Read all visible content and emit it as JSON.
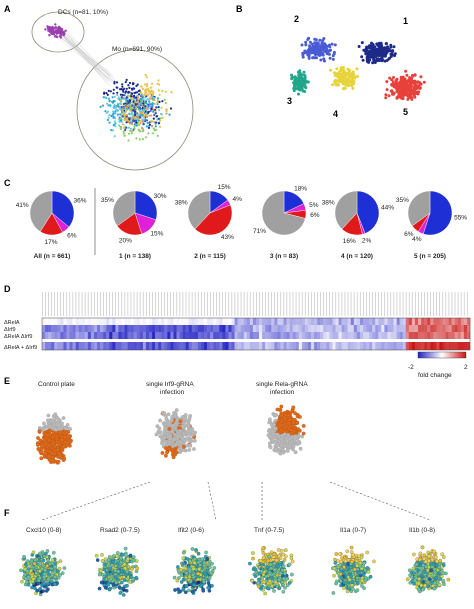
{
  "panels": {
    "A": {
      "label": "A",
      "dc_label": "DCs (n=81, 10%)",
      "mo_label": "Mo (n=691, 90%)"
    },
    "B": {
      "label": "B",
      "clusters": [
        {
          "id": "1",
          "color": "#1d2a8a"
        },
        {
          "id": "2",
          "color": "#4a5bd6"
        },
        {
          "id": "3",
          "color": "#22a68a"
        },
        {
          "id": "4",
          "color": "#e6d43a"
        },
        {
          "id": "5",
          "color": "#e8413c"
        }
      ]
    },
    "C": {
      "label": "C",
      "pies": [
        {
          "title": "All (n = 661)",
          "labels": [
            "36%",
            "6%",
            "17%",
            "41%"
          ],
          "values": [
            36,
            6,
            17,
            41
          ]
        },
        {
          "title": "1 (n = 138)",
          "labels": [
            "30%",
            "15%",
            "20%",
            "35%"
          ],
          "values": [
            30,
            15,
            20,
            35
          ]
        },
        {
          "title": "2 (n = 115)",
          "labels": [
            "15%",
            "4%",
            "43%",
            "38%"
          ],
          "values": [
            15,
            4,
            43,
            38
          ]
        },
        {
          "title": "3 (n = 83)",
          "labels": [
            "18%",
            "5%",
            "6%",
            "71%"
          ],
          "values": [
            18,
            5,
            6,
            71
          ]
        },
        {
          "title": "4 (n = 120)",
          "labels": [
            "44%",
            "2%",
            "16%",
            "38%"
          ],
          "values": [
            44,
            2,
            16,
            38
          ]
        },
        {
          "title": "5 (n = 205)",
          "labels": [
            "55%",
            "4%",
            "6%",
            "35%"
          ],
          "values": [
            55,
            4,
            6,
            35
          ]
        }
      ],
      "colors": {
        "blue": "#1f2fd6",
        "magenta": "#e020d6",
        "red": "#e01a1a",
        "gray": "#a0a0a0"
      }
    },
    "D": {
      "label": "D",
      "rows": [
        "ΔRelA",
        "ΔIrf9",
        "ΔRelA ΔIrf9",
        "ΔRelA + ΔIrf9"
      ],
      "scale_min": "-2",
      "scale_max": "2",
      "scale_label": "fold change"
    },
    "E": {
      "label": "E",
      "titles": [
        "Control plate",
        "single Irf9-gRNA infection",
        "single Rela-gRNA infection"
      ]
    },
    "F": {
      "label": "F",
      "genes": [
        "Cxcl10 (0-8)",
        "Rsad2 (0-7.5)",
        "Ifit2 (0-6)",
        "Tnf (0-7.5)",
        "Il1a (0-7)",
        "Il1b (0-8)"
      ]
    }
  }
}
